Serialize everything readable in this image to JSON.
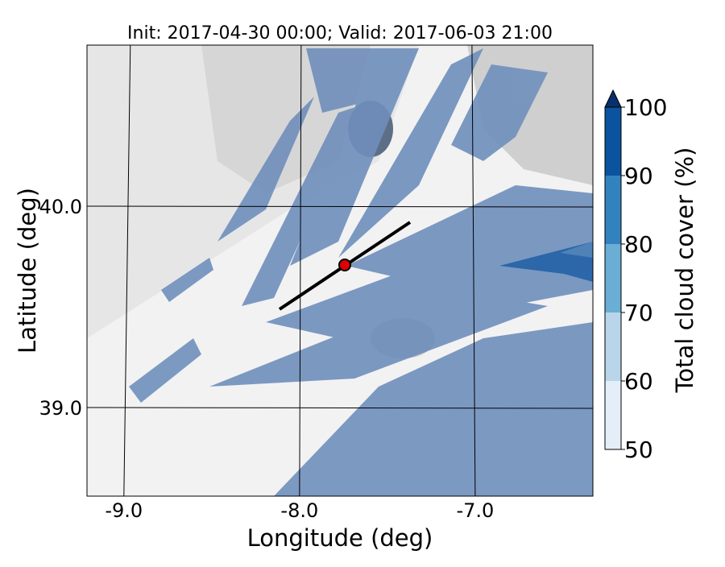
{
  "map": {
    "title": "Init: 2017-04-30 00:00; Valid: 2017-06-03 21:00",
    "x_axis": {
      "label": "Longitude (deg)",
      "lim": [
        -9.21,
        -6.33
      ],
      "ticks": [
        {
          "value": -9,
          "label": "-9.0"
        },
        {
          "value": -8,
          "label": "-8.0"
        },
        {
          "value": -7,
          "label": "-7.0"
        }
      ]
    },
    "y_axis": {
      "label": "Latitude (deg)",
      "lim": [
        38.56,
        40.8
      ],
      "ticks": [
        {
          "value": 39,
          "label": "39.0"
        },
        {
          "value": 40,
          "label": "40.0"
        }
      ]
    },
    "colorbar": {
      "label": "Total cloud cover (%)",
      "lim": [
        50,
        100
      ],
      "ticks": [
        50,
        60,
        70,
        80,
        90,
        100
      ],
      "colors": [
        "#e3eef9",
        "#b9d5ea",
        "#6aaed6",
        "#3282be",
        "#0a539e",
        "#08306b"
      ]
    }
  }
}
